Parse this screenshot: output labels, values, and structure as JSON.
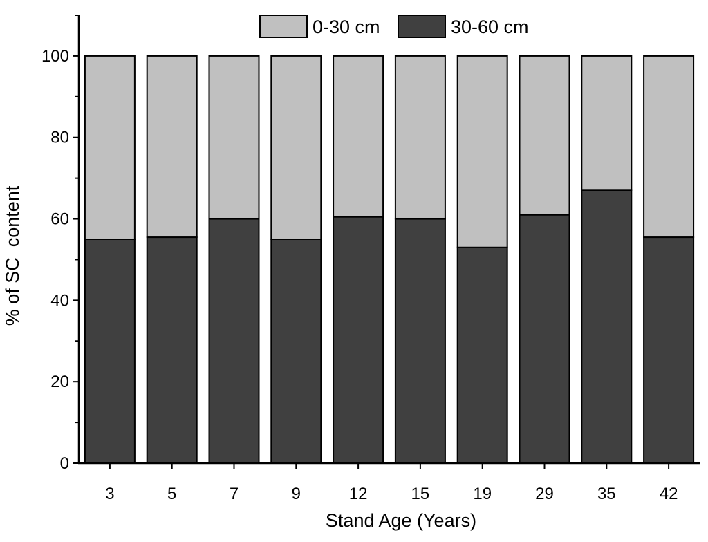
{
  "chart_data": {
    "type": "bar",
    "stacked": true,
    "title": "",
    "xlabel": "Stand Age (Years)",
    "ylabel": "% of SC  content",
    "categories": [
      "3",
      "5",
      "7",
      "9",
      "12",
      "15",
      "19",
      "29",
      "35",
      "42"
    ],
    "series": [
      {
        "name": "30-60 cm",
        "color": "#404040",
        "values": [
          55,
          55.5,
          60,
          55,
          60.5,
          60,
          53,
          61,
          67,
          55.5
        ]
      },
      {
        "name": "0-30 cm",
        "color": "#c0c0c0",
        "values": [
          45,
          44.5,
          40,
          45,
          39.5,
          40,
          47,
          39,
          33,
          44.5
        ]
      }
    ],
    "legend_order": [
      "0-30 cm",
      "30-60 cm"
    ],
    "ylim": [
      0,
      110
    ],
    "yticks": [
      0,
      20,
      40,
      60,
      80,
      100
    ],
    "grid": false,
    "legend_position": "top"
  }
}
